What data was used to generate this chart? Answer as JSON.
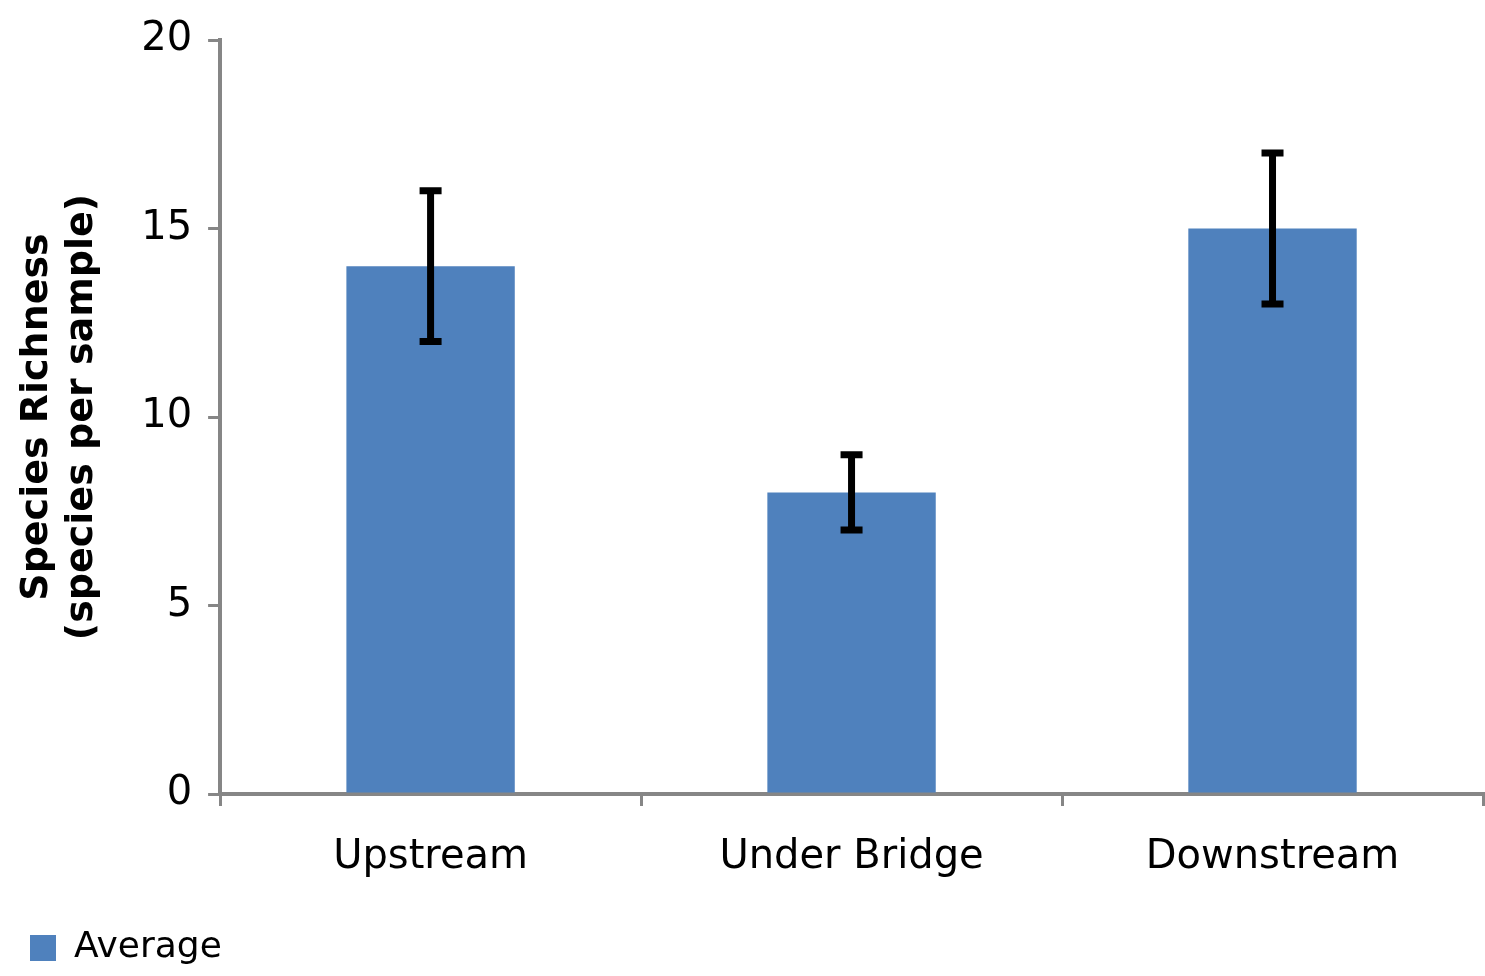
{
  "chart_data": {
    "type": "bar",
    "ylabel": "Species Richness\n(species per sample)",
    "categories": [
      "Upstream",
      "Under Bridge",
      "Downstream"
    ],
    "series": [
      {
        "name": "Average",
        "color": "#4f81bd",
        "values": [
          14,
          8,
          15
        ],
        "errors": [
          2,
          1,
          2
        ]
      }
    ],
    "ylim": [
      0,
      20
    ],
    "yticks": [
      0,
      5,
      10,
      15,
      20
    ],
    "grid": false,
    "legend": "bottom left"
  }
}
